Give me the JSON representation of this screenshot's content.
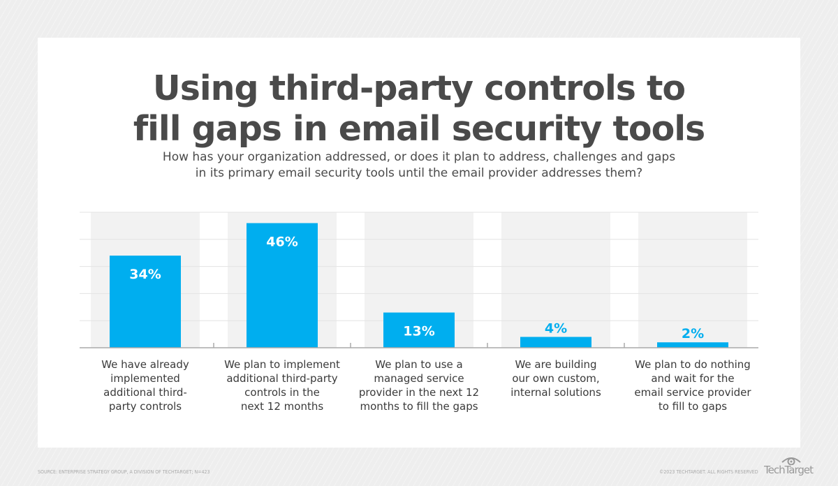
{
  "title_lines": [
    "Using third-party controls to",
    "fill gaps in email security tools"
  ],
  "subtitle_lines": [
    "How has your organization addressed, or does it plan to address, challenges and gaps",
    "in its primary email security tools until the email provider addresses them?"
  ],
  "chart_data": {
    "type": "bar",
    "categories": [
      [
        "We have already",
        "implemented",
        "additional third-",
        "party controls"
      ],
      [
        "We plan to implement",
        "additional third-party",
        "controls in the",
        "next 12 months"
      ],
      [
        "We plan to use a",
        "managed service",
        "provider in the next 12",
        "months to fill the gaps"
      ],
      [
        "We are building",
        "our own custom,",
        "internal solutions"
      ],
      [
        "We plan to do nothing",
        "and wait for the",
        "email service provider",
        "to fill to gaps"
      ]
    ],
    "values": [
      34,
      46,
      13,
      4,
      2
    ],
    "data_labels": [
      "34%",
      "46%",
      "13%",
      "4%",
      "2%"
    ],
    "ylim": [
      0,
      50
    ],
    "grid": true,
    "colors": {
      "bar": "#00aeef",
      "column_bg": "#f2f2f2",
      "gridline": "#e3e3e3",
      "axis": "#aaaaaa"
    }
  },
  "footer": {
    "source": "SOURCE: ENTERPRISE STRATEGY GROUP, A DIVISION OF TECHTARGET; N=423",
    "copyright": "©2023 TECHTARGET. ALL RIGHTS RESERVED",
    "logo": "TechTarget"
  }
}
